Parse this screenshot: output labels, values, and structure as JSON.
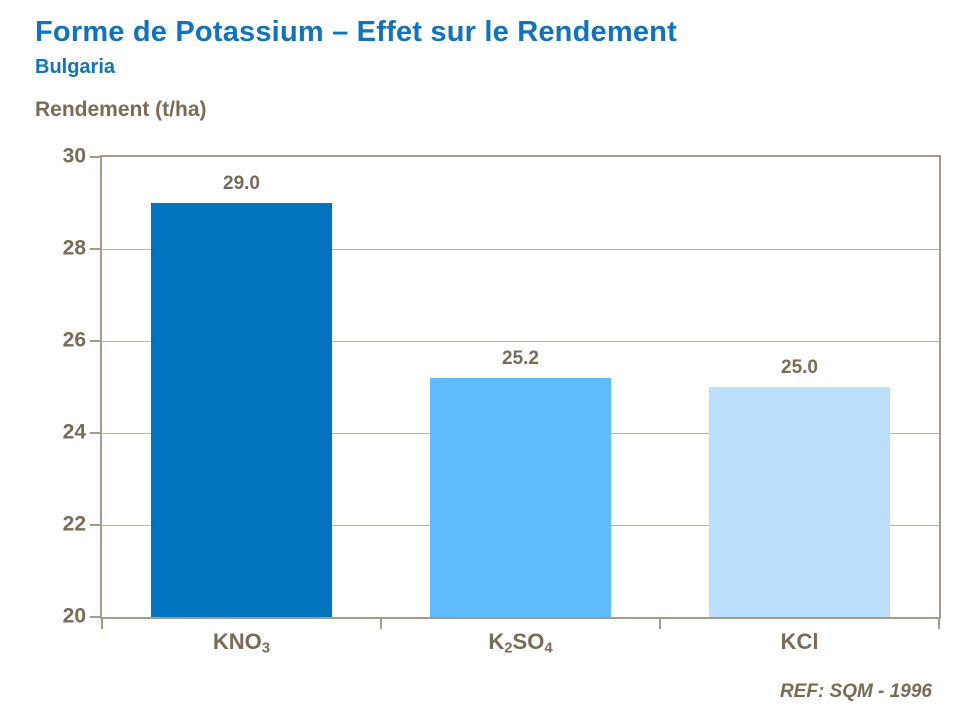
{
  "header": {
    "title": "Forme de Potassium – Effet sur le Rendement",
    "subtitle": "Bulgaria"
  },
  "footer": {
    "reference": "REF: SQM - 1996"
  },
  "colors": {
    "title_blue": "#1173BD",
    "label_brown": "#7A6B59",
    "frame": "#A49B8F",
    "gridline": "#BEB5A9",
    "background": "#FFFFFF"
  },
  "chart_data": {
    "type": "bar",
    "title": "Forme de Potassium – Effet sur le Rendement",
    "subtitle": "Bulgaria",
    "ylabel": "Rendement (t/ha)",
    "xlabel": "",
    "categories": [
      "KNO3",
      "K2SO4",
      "KCl"
    ],
    "category_parts": [
      [
        {
          "t": "KNO"
        },
        {
          "t": "3",
          "sub": true
        }
      ],
      [
        {
          "t": "K"
        },
        {
          "t": "2",
          "sub": true
        },
        {
          "t": "SO"
        },
        {
          "t": "4",
          "sub": true
        }
      ],
      [
        {
          "t": "KCl"
        }
      ]
    ],
    "values": [
      29.0,
      25.2,
      25.0
    ],
    "value_labels": [
      "29.0",
      "25.2",
      "25.0"
    ],
    "bar_colors": [
      "#0073BF",
      "#61BCFE",
      "#BADEFB"
    ],
    "ylim": [
      20,
      30
    ],
    "yticks": [
      20,
      22,
      24,
      26,
      28,
      30
    ],
    "grid": true,
    "legend": "none",
    "bar_width_fraction": 0.65
  }
}
